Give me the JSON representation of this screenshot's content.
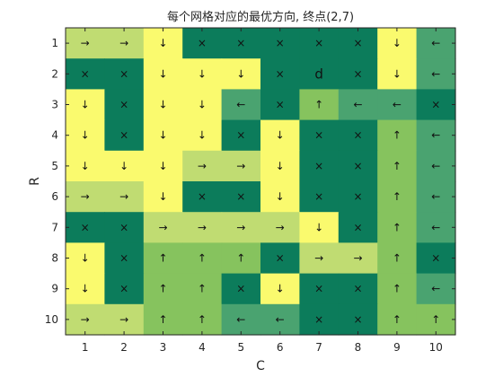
{
  "chart_data": {
    "type": "heatmap",
    "title": "每个网格对应的最优方向, 终点(2,7)",
    "xlabel": "C",
    "ylabel": "R",
    "x_ticks": [
      "1",
      "2",
      "3",
      "4",
      "5",
      "6",
      "7",
      "8",
      "9",
      "10"
    ],
    "y_ticks": [
      "1",
      "2",
      "3",
      "4",
      "5",
      "6",
      "7",
      "8",
      "9",
      "10"
    ],
    "xlim": [
      0.5,
      10.5
    ],
    "ylim": [
      0.5,
      10.5
    ],
    "y_direction": "reverse",
    "grid": false,
    "colors": {
      "yellow": "#fafa6e",
      "light_green": "#c0dc72",
      "mid_green": "#86c35e",
      "sea_green": "#4aa370",
      "dark_green": "#0c7c5b"
    },
    "cell_colors": [
      [
        "light_green",
        "light_green",
        "yellow",
        "dark_green",
        "dark_green",
        "dark_green",
        "dark_green",
        "dark_green",
        "yellow",
        "sea_green"
      ],
      [
        "dark_green",
        "dark_green",
        "yellow",
        "yellow",
        "yellow",
        "dark_green",
        "dark_green",
        "dark_green",
        "yellow",
        "sea_green"
      ],
      [
        "yellow",
        "dark_green",
        "yellow",
        "yellow",
        "sea_green",
        "dark_green",
        "mid_green",
        "sea_green",
        "sea_green",
        "dark_green"
      ],
      [
        "yellow",
        "dark_green",
        "yellow",
        "yellow",
        "dark_green",
        "yellow",
        "dark_green",
        "dark_green",
        "mid_green",
        "sea_green"
      ],
      [
        "yellow",
        "yellow",
        "yellow",
        "light_green",
        "light_green",
        "yellow",
        "dark_green",
        "dark_green",
        "mid_green",
        "sea_green"
      ],
      [
        "light_green",
        "light_green",
        "yellow",
        "dark_green",
        "dark_green",
        "yellow",
        "dark_green",
        "dark_green",
        "mid_green",
        "sea_green"
      ],
      [
        "dark_green",
        "dark_green",
        "light_green",
        "light_green",
        "light_green",
        "light_green",
        "yellow",
        "dark_green",
        "mid_green",
        "sea_green"
      ],
      [
        "yellow",
        "dark_green",
        "mid_green",
        "mid_green",
        "mid_green",
        "dark_green",
        "light_green",
        "light_green",
        "mid_green",
        "dark_green"
      ],
      [
        "yellow",
        "dark_green",
        "mid_green",
        "mid_green",
        "dark_green",
        "yellow",
        "dark_green",
        "dark_green",
        "mid_green",
        "sea_green"
      ],
      [
        "light_green",
        "light_green",
        "mid_green",
        "mid_green",
        "sea_green",
        "sea_green",
        "dark_green",
        "dark_green",
        "mid_green",
        "mid_green"
      ]
    ],
    "directions": [
      [
        "→",
        "→",
        "↓",
        "×",
        "×",
        "×",
        "×",
        "×",
        "↓",
        "←"
      ],
      [
        "×",
        "×",
        "↓",
        "↓",
        "↓",
        "×",
        "d",
        "×",
        "↓",
        "←"
      ],
      [
        "↓",
        "×",
        "↓",
        "↓",
        "←",
        "×",
        "↑",
        "←",
        "←",
        "×"
      ],
      [
        "↓",
        "×",
        "↓",
        "↓",
        "×",
        "↓",
        "×",
        "×",
        "↑",
        "←"
      ],
      [
        "↓",
        "↓",
        "↓",
        "→",
        "→",
        "↓",
        "×",
        "×",
        "↑",
        "←"
      ],
      [
        "→",
        "→",
        "↓",
        "×",
        "×",
        "↓",
        "×",
        "×",
        "↑",
        "←"
      ],
      [
        "×",
        "×",
        "→",
        "→",
        "→",
        "→",
        "↓",
        "×",
        "↑",
        "←"
      ],
      [
        "↓",
        "×",
        "↑",
        "↑",
        "↑",
        "×",
        "→",
        "→",
        "↑",
        "×"
      ],
      [
        "↓",
        "×",
        "↑",
        "↑",
        "×",
        "↓",
        "×",
        "×",
        "↑",
        "←"
      ],
      [
        "→",
        "→",
        "↑",
        "↑",
        "←",
        "←",
        "×",
        "×",
        "↑",
        "↑"
      ]
    ]
  }
}
